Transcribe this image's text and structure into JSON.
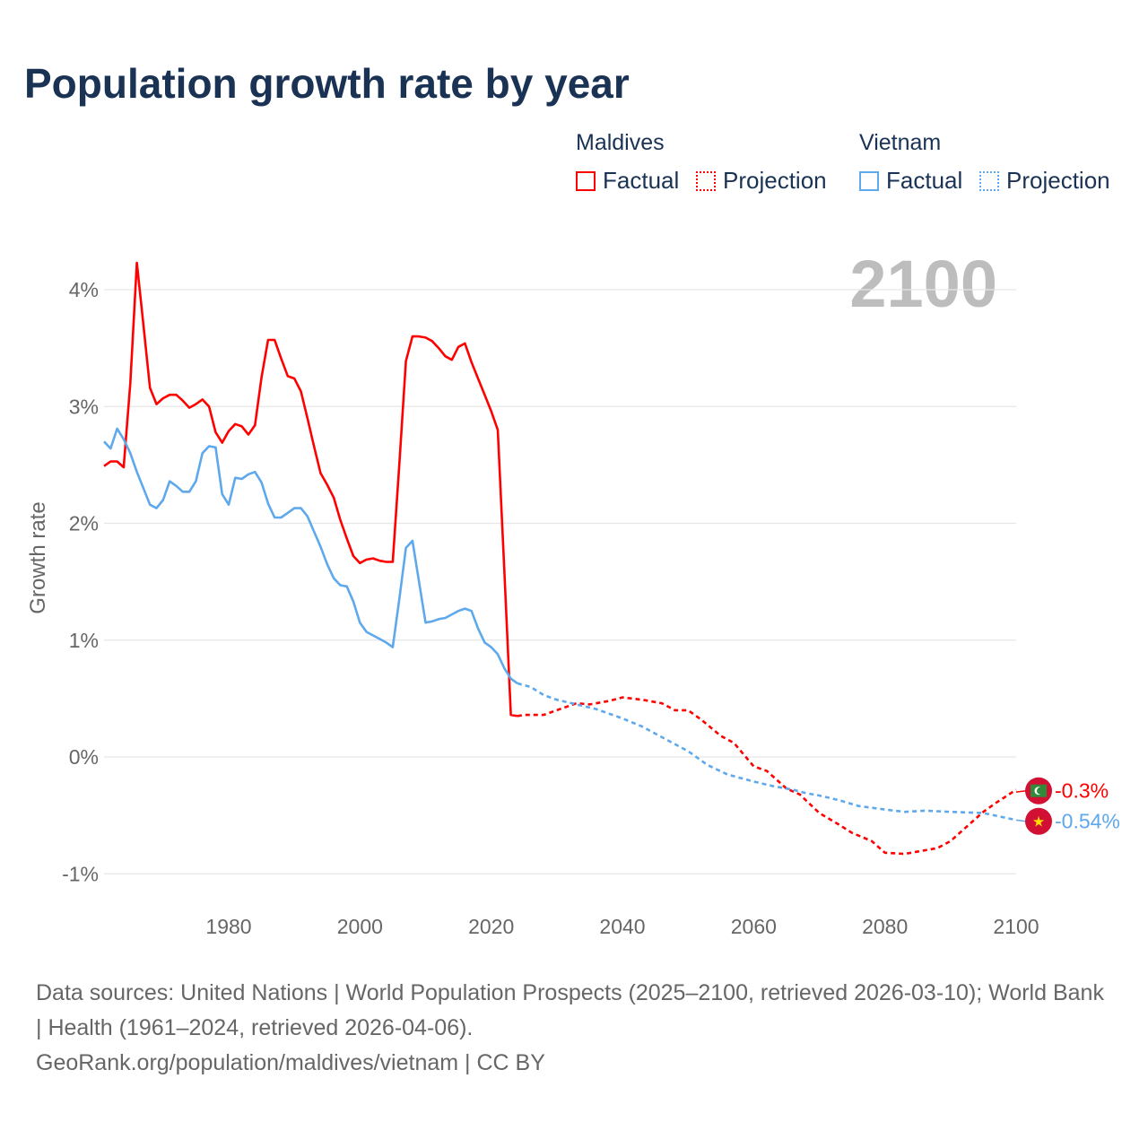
{
  "title": "Population growth rate by year",
  "legend": {
    "groups": [
      {
        "name": "Maldives",
        "color": "#ff0000",
        "factual": "Factual",
        "projection": "Projection"
      },
      {
        "name": "Vietnam",
        "color": "#5ea8ec",
        "factual": "Factual",
        "projection": "Projection"
      }
    ]
  },
  "year_watermark": "2100",
  "footer": {
    "sources": "Data sources: United Nations | World Population Prospects (2025–2100, retrieved 2026-03-10); World Bank | Health (1961–2024, retrieved 2026-04-06).",
    "credit": "GeoRank.org/population/maldives/vietnam | CC BY"
  },
  "chart_data": {
    "type": "line",
    "title": "Population growth rate by year",
    "xlabel": "",
    "ylabel": "Growth rate",
    "xlim": [
      1961,
      2100
    ],
    "ylim": [
      -1.25,
      4.4
    ],
    "x_ticks": [
      1980,
      2000,
      2020,
      2040,
      2060,
      2080,
      2100
    ],
    "y_ticks": [
      {
        "v": 4,
        "label": "4%"
      },
      {
        "v": 3,
        "label": "3%"
      },
      {
        "v": 2,
        "label": "2%"
      },
      {
        "v": 1,
        "label": "1%"
      },
      {
        "v": 0,
        "label": "0%"
      },
      {
        "v": -1,
        "label": "-1%"
      }
    ],
    "grid": true,
    "series": [
      {
        "name": "Maldives Factual",
        "color": "#ff0000",
        "dashed": false,
        "x": [
          1961,
          1962,
          1963,
          1964,
          1965,
          1966,
          1967,
          1968,
          1969,
          1970,
          1971,
          1972,
          1973,
          1974,
          1975,
          1976,
          1977,
          1978,
          1979,
          1980,
          1981,
          1982,
          1983,
          1984,
          1985,
          1986,
          1987,
          1988,
          1989,
          1990,
          1991,
          1992,
          1993,
          1994,
          1995,
          1996,
          1997,
          1998,
          1999,
          2000,
          2001,
          2002,
          2003,
          2004,
          2005,
          2006,
          2007,
          2008,
          2009,
          2010,
          2011,
          2012,
          2013,
          2014,
          2015,
          2016,
          2017,
          2018,
          2019,
          2020,
          2021,
          2022,
          2023,
          2024
        ],
        "y": [
          2.49,
          2.53,
          2.53,
          2.48,
          3.2,
          4.23,
          3.7,
          3.16,
          3.02,
          3.07,
          3.1,
          3.1,
          3.05,
          2.99,
          3.02,
          3.06,
          3.0,
          2.78,
          2.69,
          2.79,
          2.85,
          2.83,
          2.76,
          2.84,
          3.25,
          3.57,
          3.57,
          3.41,
          3.26,
          3.24,
          3.13,
          2.9,
          2.66,
          2.43,
          2.33,
          2.22,
          2.03,
          1.87,
          1.72,
          1.66,
          1.69,
          1.7,
          1.68,
          1.67,
          1.67,
          2.5,
          3.39,
          3.6,
          3.6,
          3.59,
          3.56,
          3.5,
          3.43,
          3.4,
          3.51,
          3.54,
          3.38,
          3.24,
          3.1,
          2.96,
          2.8,
          1.6,
          0.36,
          0.35
        ]
      },
      {
        "name": "Maldives Projection",
        "color": "#ff0000",
        "dashed": true,
        "x": [
          2024,
          2025,
          2028,
          2030,
          2033,
          2035,
          2038,
          2040,
          2043,
          2046,
          2048,
          2050,
          2052,
          2055,
          2057,
          2060,
          2062,
          2065,
          2067,
          2070,
          2073,
          2075,
          2078,
          2080,
          2083,
          2086,
          2088,
          2090,
          2093,
          2095,
          2097,
          2100
        ],
        "y": [
          0.35,
          0.36,
          0.36,
          0.4,
          0.46,
          0.45,
          0.48,
          0.51,
          0.49,
          0.46,
          0.4,
          0.4,
          0.32,
          0.18,
          0.12,
          -0.08,
          -0.12,
          -0.27,
          -0.32,
          -0.48,
          -0.58,
          -0.65,
          -0.72,
          -0.82,
          -0.83,
          -0.8,
          -0.78,
          -0.72,
          -0.57,
          -0.47,
          -0.39,
          -0.28
        ]
      },
      {
        "name": "Vietnam Factual",
        "color": "#5ea8ec",
        "dashed": false,
        "x": [
          1961,
          1962,
          1963,
          1964,
          1965,
          1966,
          1967,
          1968,
          1969,
          1970,
          1971,
          1972,
          1973,
          1974,
          1975,
          1976,
          1977,
          1978,
          1979,
          1980,
          1981,
          1982,
          1983,
          1984,
          1985,
          1986,
          1987,
          1988,
          1989,
          1990,
          1991,
          1992,
          1993,
          1994,
          1995,
          1996,
          1997,
          1998,
          1999,
          2000,
          2001,
          2002,
          2003,
          2004,
          2005,
          2006,
          2007,
          2008,
          2009,
          2010,
          2011,
          2012,
          2013,
          2014,
          2015,
          2016,
          2017,
          2018,
          2019,
          2020,
          2021,
          2022,
          2023,
          2024
        ],
        "y": [
          2.7,
          2.64,
          2.81,
          2.72,
          2.6,
          2.44,
          2.3,
          2.16,
          2.13,
          2.2,
          2.36,
          2.32,
          2.27,
          2.27,
          2.36,
          2.6,
          2.66,
          2.65,
          2.25,
          2.16,
          2.39,
          2.38,
          2.42,
          2.44,
          2.35,
          2.17,
          2.05,
          2.05,
          2.09,
          2.13,
          2.13,
          2.06,
          1.93,
          1.8,
          1.65,
          1.53,
          1.47,
          1.46,
          1.33,
          1.15,
          1.07,
          1.04,
          1.01,
          0.98,
          0.94,
          1.35,
          1.79,
          1.85,
          1.5,
          1.15,
          1.16,
          1.18,
          1.19,
          1.22,
          1.25,
          1.27,
          1.25,
          1.1,
          0.98,
          0.94,
          0.88,
          0.76,
          0.67,
          0.63
        ]
      },
      {
        "name": "Vietnam Projection",
        "color": "#5ea8ec",
        "dashed": true,
        "x": [
          2024,
          2026,
          2028,
          2030,
          2033,
          2036,
          2040,
          2043,
          2046,
          2050,
          2053,
          2056,
          2060,
          2063,
          2066,
          2068,
          2070,
          2073,
          2076,
          2080,
          2083,
          2086,
          2090,
          2095,
          2100
        ],
        "y": [
          0.63,
          0.6,
          0.53,
          0.49,
          0.45,
          0.41,
          0.33,
          0.26,
          0.17,
          0.05,
          -0.07,
          -0.15,
          -0.21,
          -0.25,
          -0.28,
          -0.31,
          -0.33,
          -0.37,
          -0.42,
          -0.45,
          -0.47,
          -0.46,
          -0.47,
          -0.48,
          -0.54
        ]
      }
    ],
    "end_labels": [
      {
        "country": "Maldives",
        "label": "-0.3%",
        "value": -0.3,
        "color": "#ff0000"
      },
      {
        "country": "Vietnam",
        "label": "-0.54%",
        "value": -0.54,
        "color": "#5ea8ec"
      }
    ]
  }
}
